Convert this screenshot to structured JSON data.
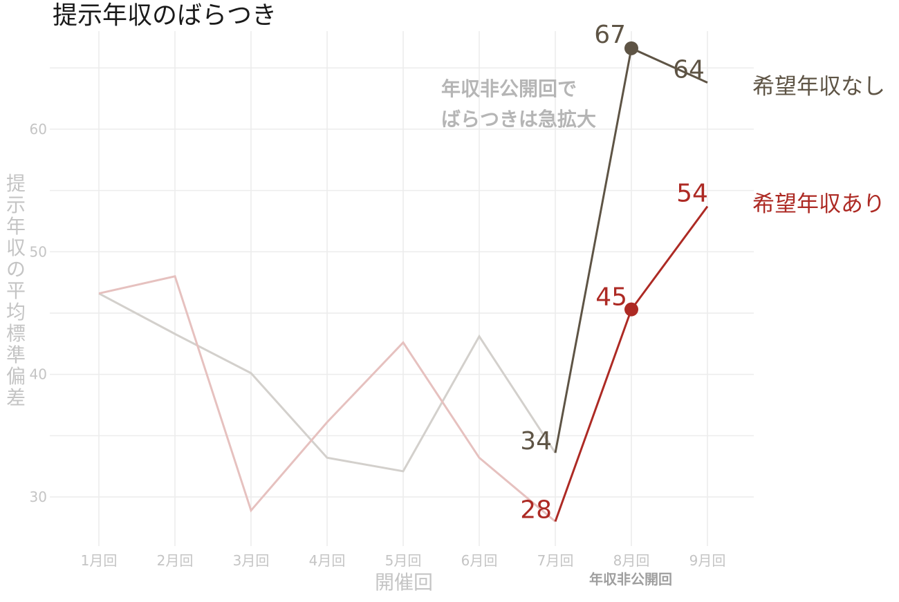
{
  "chart_data": {
    "type": "line",
    "title": "提示年収のばらつき",
    "xlabel": "開催回",
    "ylabel": "提示年収の平均標準偏差",
    "x_sublabel": "年収非公開回",
    "categories": [
      "1月回",
      "2月回",
      "3月回",
      "4月回",
      "5月回",
      "6月回",
      "7月回",
      "8月回",
      "9月回"
    ],
    "ylim": [
      26,
      68
    ],
    "yticks": [
      30,
      40,
      50,
      60
    ],
    "grid": true,
    "annotation": [
      "年収非公開回で",
      "ばらつきは急拡大"
    ],
    "series": [
      {
        "name": "希望年収なし",
        "color": "#5e5445",
        "faded_color": "#d3d0cc",
        "values": [
          46.6,
          43.3,
          40.1,
          33.2,
          32.1,
          43.1,
          33.6,
          66.6,
          63.8
        ],
        "highlight_from": 6,
        "point_at": 7,
        "labels": [
          {
            "index": 6,
            "text": "34"
          },
          {
            "index": 7,
            "text": "67"
          },
          {
            "index": 8,
            "text": "64"
          }
        ]
      },
      {
        "name": "希望年収あり",
        "color": "#ad2a24",
        "faded_color": "#e6c1bf",
        "values": [
          46.6,
          48.0,
          28.9,
          36.1,
          42.6,
          33.2,
          28.0,
          45.3,
          53.7
        ],
        "highlight_from": 6,
        "point_at": 7,
        "labels": [
          {
            "index": 6,
            "text": "28"
          },
          {
            "index": 7,
            "text": "45"
          },
          {
            "index": 8,
            "text": "54"
          }
        ]
      }
    ]
  }
}
